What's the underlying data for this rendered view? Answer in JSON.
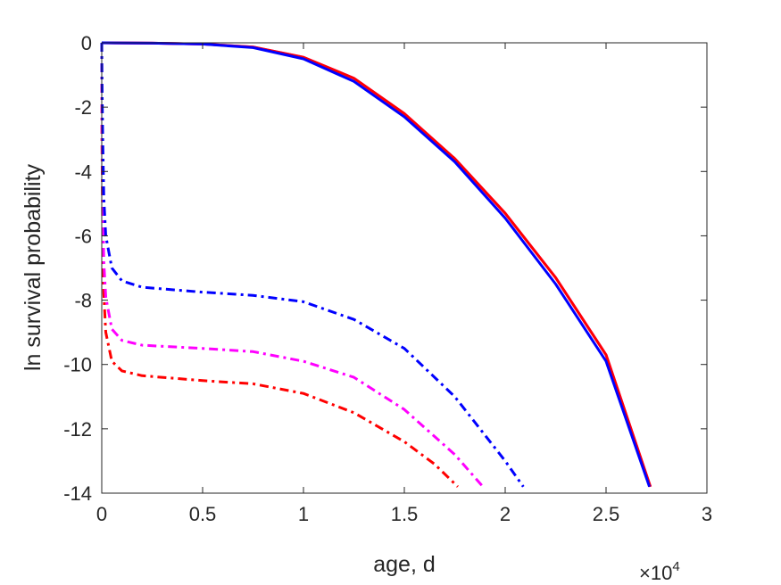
{
  "chart_data": {
    "type": "line",
    "xlabel": "age, d",
    "ylabel": "ln survival probability",
    "x_exponent_label": "×10",
    "x_exponent_power": "4",
    "xlim": [
      0,
      3
    ],
    "ylim": [
      -14,
      0
    ],
    "x_ticks": [
      0,
      0.5,
      1,
      1.5,
      2,
      2.5,
      3
    ],
    "x_tick_labels": [
      "0",
      "0.5",
      "1",
      "1.5",
      "2",
      "2.5",
      "3"
    ],
    "y_ticks": [
      0,
      -2,
      -4,
      -6,
      -8,
      -10,
      -12,
      -14
    ],
    "y_tick_labels": [
      "0",
      "-2",
      "-4",
      "-6",
      "-8",
      "-10",
      "-12",
      "-14"
    ],
    "grid": false,
    "legend": "none",
    "series": [
      {
        "color": "#ff00ff",
        "style": "solid",
        "points": [
          [
            0,
            0
          ],
          [
            0.25,
            -0.01
          ],
          [
            0.5,
            -0.04
          ],
          [
            0.75,
            -0.13
          ],
          [
            1,
            -0.45
          ],
          [
            1.25,
            -1.1
          ],
          [
            1.5,
            -2.2
          ],
          [
            1.75,
            -3.6
          ],
          [
            2,
            -5.3
          ],
          [
            2.25,
            -7.3
          ],
          [
            2.5,
            -9.7
          ],
          [
            2.72,
            -13.8
          ]
        ]
      },
      {
        "color": "#ff0000",
        "style": "solid",
        "points": [
          [
            0,
            0
          ],
          [
            0.25,
            -0.01
          ],
          [
            0.5,
            -0.04
          ],
          [
            0.75,
            -0.13
          ],
          [
            1,
            -0.45
          ],
          [
            1.25,
            -1.1
          ],
          [
            1.5,
            -2.2
          ],
          [
            1.75,
            -3.6
          ],
          [
            2,
            -5.3
          ],
          [
            2.25,
            -7.3
          ],
          [
            2.5,
            -9.7
          ],
          [
            2.72,
            -13.8
          ]
        ]
      },
      {
        "color": "#0000ff",
        "style": "solid",
        "points": [
          [
            0,
            0
          ],
          [
            0.25,
            -0.01
          ],
          [
            0.5,
            -0.04
          ],
          [
            0.75,
            -0.15
          ],
          [
            1,
            -0.5
          ],
          [
            1.25,
            -1.2
          ],
          [
            1.5,
            -2.3
          ],
          [
            1.75,
            -3.7
          ],
          [
            2,
            -5.45
          ],
          [
            2.25,
            -7.5
          ],
          [
            2.5,
            -9.9
          ],
          [
            2.715,
            -13.8
          ]
        ]
      },
      {
        "color": "#ff0000",
        "style": "dashdot",
        "points": [
          [
            0,
            0
          ],
          [
            0.001,
            -3
          ],
          [
            0.005,
            -6
          ],
          [
            0.01,
            -7.8
          ],
          [
            0.02,
            -9
          ],
          [
            0.05,
            -9.9
          ],
          [
            0.1,
            -10.2
          ],
          [
            0.2,
            -10.35
          ],
          [
            0.5,
            -10.5
          ],
          [
            0.75,
            -10.6
          ],
          [
            1,
            -10.9
          ],
          [
            1.25,
            -11.5
          ],
          [
            1.5,
            -12.4
          ],
          [
            1.65,
            -13.1
          ],
          [
            1.765,
            -13.8
          ]
        ]
      },
      {
        "color": "#ff00ff",
        "style": "dashdot",
        "points": [
          [
            0,
            0
          ],
          [
            0.001,
            -2.5
          ],
          [
            0.005,
            -5
          ],
          [
            0.01,
            -6.8
          ],
          [
            0.02,
            -7.9
          ],
          [
            0.05,
            -8.9
          ],
          [
            0.1,
            -9.25
          ],
          [
            0.2,
            -9.4
          ],
          [
            0.5,
            -9.5
          ],
          [
            0.75,
            -9.6
          ],
          [
            1,
            -9.9
          ],
          [
            1.25,
            -10.4
          ],
          [
            1.5,
            -11.4
          ],
          [
            1.75,
            -12.8
          ],
          [
            1.89,
            -13.8
          ]
        ]
      },
      {
        "color": "#0000ff",
        "style": "dashdot",
        "points": [
          [
            0,
            0
          ],
          [
            0.001,
            -1
          ],
          [
            0.005,
            -3
          ],
          [
            0.01,
            -4.8
          ],
          [
            0.02,
            -6
          ],
          [
            0.05,
            -7
          ],
          [
            0.1,
            -7.4
          ],
          [
            0.2,
            -7.6
          ],
          [
            0.5,
            -7.75
          ],
          [
            0.75,
            -7.85
          ],
          [
            1,
            -8.05
          ],
          [
            1.25,
            -8.6
          ],
          [
            1.5,
            -9.5
          ],
          [
            1.75,
            -11
          ],
          [
            2,
            -13
          ],
          [
            2.09,
            -13.8
          ]
        ]
      }
    ]
  }
}
